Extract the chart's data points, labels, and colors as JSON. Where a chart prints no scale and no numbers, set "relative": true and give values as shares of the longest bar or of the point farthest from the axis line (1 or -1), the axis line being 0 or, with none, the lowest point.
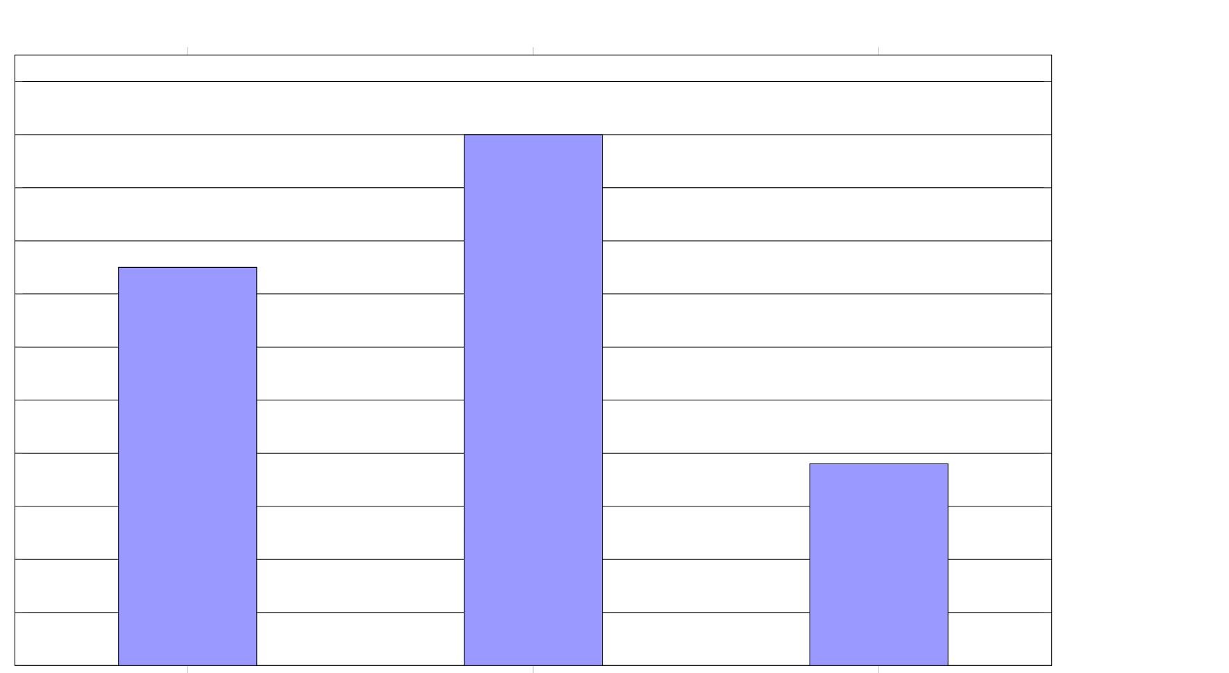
{
  "chart_data": {
    "type": "bar",
    "categories": [
      null,
      null,
      null
    ],
    "series": [
      {
        "color": "#9999ff",
        "values": [
          0.75,
          1,
          0.38
        ]
      }
    ],
    "relative": true,
    "grid": "y"
  }
}
